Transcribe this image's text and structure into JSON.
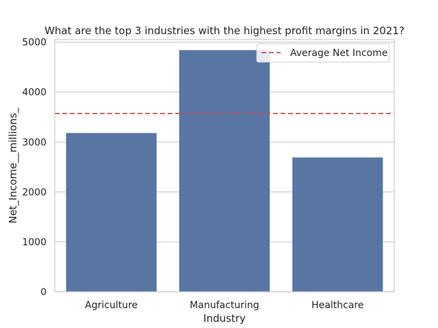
{
  "chart_data": {
    "type": "bar",
    "title": "What are the top 3 industries with the highest profit margins in 2021?",
    "xlabel": "Industry",
    "ylabel": "Net_Income__millions_",
    "categories": [
      "Agriculture",
      "Manufacturing",
      "Healthcare"
    ],
    "values": [
      3180,
      4840,
      2690
    ],
    "ylim": [
      0,
      5050
    ],
    "yticks": [
      0,
      1000,
      2000,
      3000,
      4000,
      5000
    ],
    "grid": true,
    "bar_color": "#5875a4",
    "reference_line": {
      "label": "Average Net Income",
      "value": 3570,
      "color": "#c44e52",
      "style": "dashed"
    },
    "legend": {
      "placement": "top-right",
      "entries": [
        "Average Net Income"
      ]
    }
  }
}
